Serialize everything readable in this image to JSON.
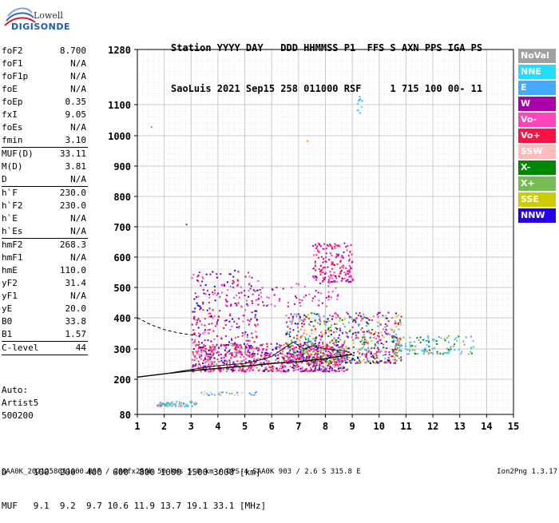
{
  "logo": {
    "brand_top": "Lowell",
    "brand_main": "DIGISONDE"
  },
  "header": {
    "labels_line": "Station YYYY DAY   DDD HHMMSS P1  FFS S AXN PPS IGA PS",
    "values_line": "SaoLuis 2021 Sep15 258 011000 RSF     1 715 100 00- 11"
  },
  "params": [
    {
      "label": "foF2",
      "value": "8.700"
    },
    {
      "label": "foF1",
      "value": "N/A"
    },
    {
      "label": "foF1p",
      "value": "N/A"
    },
    {
      "label": "foE",
      "value": "N/A"
    },
    {
      "label": "foEp",
      "value": "0.35"
    },
    {
      "label": "fxI",
      "value": "9.05"
    },
    {
      "label": "foEs",
      "value": "N/A"
    },
    {
      "label": "fmin",
      "value": "3.10",
      "sep": true
    },
    {
      "label": "MUF(D)",
      "value": "33.11"
    },
    {
      "label": "M(D)",
      "value": "3.81"
    },
    {
      "label": "D",
      "value": "N/A",
      "sep": true
    },
    {
      "label": "h`F",
      "value": "230.0"
    },
    {
      "label": "h`F2",
      "value": "230.0"
    },
    {
      "label": "h`E",
      "value": "N/A"
    },
    {
      "label": "h`Es",
      "value": "N/A",
      "sep": true
    },
    {
      "label": "hmF2",
      "value": "268.3"
    },
    {
      "label": "hmF1",
      "value": "N/A"
    },
    {
      "label": "hmE",
      "value": "110.0"
    },
    {
      "label": "yF2",
      "value": "31.4"
    },
    {
      "label": "yF1",
      "value": "N/A"
    },
    {
      "label": "yE",
      "value": "20.0"
    },
    {
      "label": "B0",
      "value": "33.8"
    },
    {
      "label": "B1",
      "value": "1.57",
      "sep": true
    },
    {
      "label": "C-level",
      "value": "44",
      "sep": true
    }
  ],
  "auto": {
    "line1": "Auto:",
    "line2": "Artist5",
    "line3": "500200"
  },
  "muf_table": {
    "d_line": "D     100  200  400  600  800 1000 1500 3000 [km]",
    "muf_line": "MUF   9.1  9.2  9.7 10.6 11.9 13.7 19.1 33.1 [MHz]"
  },
  "footer": {
    "left": "SAA0K_2021258011000.RSF / 280fx256h 50 kHs 5.0 km / DPS-4 SAA0K 903 / 2.6 S 315.8 E",
    "right": "Ion2Png 1.3.17"
  },
  "legend": [
    {
      "label": "NoVal",
      "color": "#a0a0a0"
    },
    {
      "label": "NNE",
      "color": "#22ddff"
    },
    {
      "label": "E",
      "color": "#44aaff"
    },
    {
      "label": "W",
      "color": "#aa00aa"
    },
    {
      "label": "Vo-",
      "color": "#ff44bb"
    },
    {
      "label": "Vo+",
      "color": "#ff1144"
    },
    {
      "label": "SSW",
      "color": "#ffbbbb"
    },
    {
      "label": "X-",
      "color": "#008800"
    },
    {
      "label": "X+",
      "color": "#77bb55"
    },
    {
      "label": "SSE",
      "color": "#cccc00"
    },
    {
      "label": "NNW",
      "color": "#2200ee"
    }
  ],
  "chart_data": {
    "type": "scatter",
    "x_ticks": [
      "1",
      "2",
      "3",
      "4",
      "5",
      "6",
      "7",
      "8",
      "9",
      "10",
      "11",
      "12",
      "13",
      "14",
      "15"
    ],
    "y_ticks": [
      "80",
      "200",
      "300",
      "400",
      "500",
      "600",
      "700",
      "800",
      "900",
      "1000",
      "1100",
      "1280"
    ],
    "xlim": [
      1,
      15
    ],
    "ylim": [
      80,
      1280
    ],
    "grid": true,
    "clusters": [
      {
        "f_min": 3.0,
        "f_max": 8.8,
        "h_min": 228,
        "h_max": 320,
        "n": 900,
        "colors": [
          "#ff1144",
          "#ff44bb",
          "#ff1144",
          "#aa00aa",
          "#2200ee",
          "#77bb55",
          "#ff44bb"
        ]
      },
      {
        "f_min": 6.5,
        "f_max": 10.8,
        "h_min": 255,
        "h_max": 420,
        "n": 700,
        "colors": [
          "#ff44bb",
          "#aa00aa",
          "#2200ee",
          "#77bb55",
          "#44aaff",
          "#cccc00",
          "#ff1144",
          "#008800"
        ]
      },
      {
        "f_min": 3.0,
        "f_max": 5.5,
        "h_min": 280,
        "h_max": 560,
        "n": 260,
        "colors": [
          "#2200ee",
          "#aa00aa",
          "#ff44bb",
          "#ff1144"
        ]
      },
      {
        "f_min": 7.5,
        "f_max": 9.0,
        "h_min": 520,
        "h_max": 650,
        "n": 180,
        "colors": [
          "#aa00aa",
          "#ff44bb",
          "#ff1144"
        ]
      },
      {
        "f_min": 4.0,
        "f_max": 8.5,
        "h_min": 440,
        "h_max": 520,
        "n": 90,
        "colors": [
          "#aa00aa",
          "#ff44bb"
        ]
      },
      {
        "f_min": 1.7,
        "f_max": 3.2,
        "h_min": 110,
        "h_max": 128,
        "n": 80,
        "colors": [
          "#77bb55",
          "#44aaff",
          "#ff44bb",
          "#22ddff",
          "#ffbbbb"
        ]
      },
      {
        "f_min": 3.2,
        "f_max": 5.5,
        "h_min": 148,
        "h_max": 160,
        "n": 30,
        "colors": [
          "#77bb55",
          "#ffbbbb",
          "#44aaff"
        ]
      },
      {
        "f_min": 10.5,
        "f_max": 13.5,
        "h_min": 285,
        "h_max": 345,
        "n": 120,
        "colors": [
          "#44aaff",
          "#22ddff",
          "#a0a0a0",
          "#77bb55",
          "#008800"
        ]
      },
      {
        "f_min": 9.15,
        "f_max": 9.35,
        "h_min": 1075,
        "h_max": 1130,
        "n": 10,
        "colors": [
          "#44aaff",
          "#22ddff"
        ]
      }
    ],
    "isolated_points": [
      {
        "x": 1.5,
        "y": 1030,
        "color": "#44aaff"
      },
      {
        "x": 7.3,
        "y": 985,
        "color": "#ff8800"
      },
      {
        "x": 2.8,
        "y": 710,
        "color": "#aa00aa"
      }
    ],
    "trace_o": [
      [
        2.0,
        218
      ],
      [
        3.0,
        232
      ],
      [
        4.0,
        245
      ],
      [
        5.0,
        252
      ],
      [
        5.5,
        262
      ],
      [
        6.0,
        275
      ],
      [
        6.5,
        305
      ],
      [
        6.8,
        322
      ],
      [
        7.2,
        300
      ],
      [
        7.5,
        310
      ],
      [
        8.0,
        300
      ],
      [
        8.5,
        295
      ],
      [
        8.8,
        292
      ]
    ],
    "trace_f": [
      [
        1.0,
        207
      ],
      [
        2.0,
        218
      ],
      [
        3.0,
        228
      ],
      [
        4.0,
        236
      ],
      [
        5.0,
        243
      ],
      [
        6.0,
        252
      ],
      [
        7.0,
        258
      ],
      [
        8.0,
        268
      ],
      [
        9.0,
        282
      ]
    ],
    "trace_dashed": [
      [
        1.0,
        400
      ],
      [
        1.5,
        378
      ],
      [
        2.0,
        362
      ],
      [
        2.5,
        352
      ],
      [
        3.0,
        345
      ],
      [
        3.2,
        342
      ]
    ]
  }
}
